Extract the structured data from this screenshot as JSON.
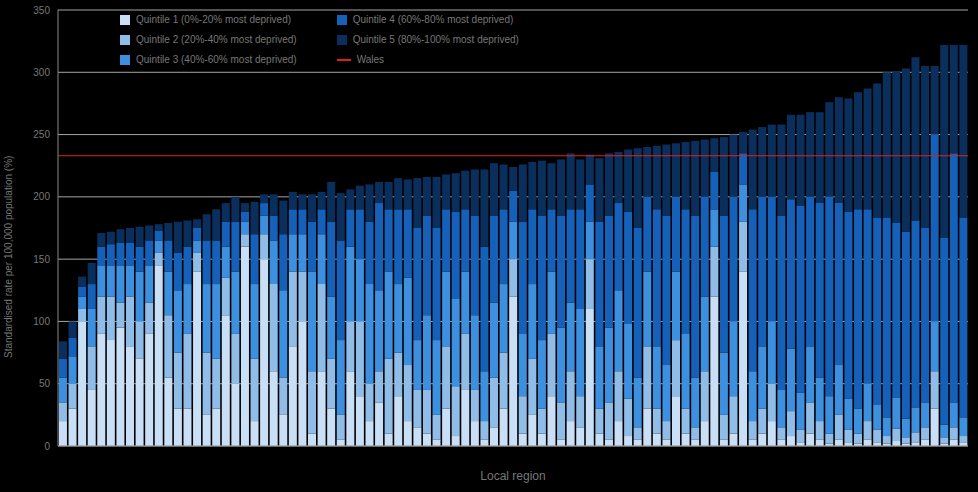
{
  "chart_data": {
    "type": "bar",
    "stacked": true,
    "grid": true,
    "legend": "top-left",
    "tick_labels": "y",
    "y_label": "Standardised rate per 100,000 population (%)",
    "x_label": "Local region",
    "categories": [
      null,
      null,
      null,
      null,
      null,
      null,
      null,
      null,
      null,
      null,
      null,
      null,
      null,
      null,
      null,
      null,
      null,
      null,
      null,
      null,
      null,
      null,
      null,
      null,
      null,
      null,
      null,
      null,
      null,
      null,
      null,
      null,
      null,
      null,
      null,
      null,
      null,
      null,
      null,
      null,
      null,
      null,
      null,
      null,
      null,
      null,
      null,
      null,
      null,
      null,
      null,
      null,
      null,
      null,
      null,
      null,
      null,
      null,
      null,
      null,
      null,
      null,
      null,
      null,
      null,
      null,
      null,
      null,
      null,
      null,
      null,
      null,
      null,
      null,
      null,
      null,
      null,
      null,
      null,
      null,
      null,
      null,
      null,
      null,
      null,
      null,
      null,
      null,
      null,
      null,
      null,
      null,
      null,
      null,
      null
    ],
    "ylim": [
      0,
      350
    ],
    "yticks": [
      0,
      50,
      100,
      150,
      200,
      250,
      300,
      350
    ],
    "series": [
      {
        "name": "Quintile 1 (0%-20% most deprived)",
        "color": "#c9dff5",
        "values": [
          20,
          30,
          100,
          45,
          90,
          85,
          95,
          80,
          70,
          90,
          145,
          55,
          30,
          30,
          140,
          25,
          30,
          105,
          50,
          160,
          20,
          150,
          60,
          25,
          80,
          100,
          10,
          60,
          30,
          5,
          60,
          40,
          20,
          35,
          10,
          40,
          20,
          15,
          10,
          5,
          30,
          8,
          45,
          20,
          5,
          15,
          30,
          120,
          10,
          25,
          10,
          40,
          5,
          20,
          15,
          110,
          10,
          5,
          20,
          8,
          5,
          30,
          10,
          5,
          40,
          10,
          5,
          20,
          120,
          5,
          10,
          140,
          5,
          10,
          20,
          5,
          8,
          3,
          10,
          5,
          2,
          5,
          3,
          2,
          5,
          3,
          2,
          4,
          2,
          3,
          5,
          30,
          2,
          5,
          3
        ]
      },
      {
        "name": "Quintile 2 (20%-40% most deprived)",
        "color": "#8fbde8",
        "values": [
          15,
          20,
          10,
          35,
          30,
          35,
          20,
          40,
          30,
          25,
          10,
          50,
          45,
          60,
          15,
          50,
          40,
          30,
          40,
          10,
          50,
          20,
          70,
          30,
          60,
          40,
          50,
          70,
          40,
          20,
          40,
          60,
          30,
          25,
          60,
          35,
          45,
          30,
          35,
          20,
          50,
          40,
          45,
          25,
          15,
          40,
          45,
          30,
          30,
          45,
          20,
          50,
          30,
          40,
          25,
          40,
          20,
          30,
          40,
          30,
          10,
          50,
          20,
          15,
          45,
          20,
          10,
          40,
          40,
          20,
          30,
          40,
          15,
          20,
          30,
          10,
          20,
          10,
          25,
          15,
          8,
          20,
          10,
          8,
          15,
          10,
          6,
          10,
          5,
          8,
          10,
          30,
          5,
          10,
          5
        ]
      },
      {
        "name": "Quintile 3 (40%-60% most deprived)",
        "color": "#3d8fe0",
        "values": [
          20,
          22,
          10,
          30,
          25,
          25,
          30,
          25,
          40,
          30,
          10,
          35,
          50,
          40,
          10,
          55,
          60,
          25,
          50,
          10,
          60,
          15,
          35,
          70,
          30,
          30,
          80,
          40,
          50,
          60,
          60,
          50,
          80,
          65,
          70,
          55,
          70,
          40,
          60,
          60,
          60,
          70,
          50,
          60,
          40,
          60,
          55,
          30,
          50,
          60,
          55,
          50,
          60,
          55,
          70,
          30,
          50,
          60,
          65,
          60,
          40,
          60,
          50,
          45,
          55,
          60,
          40,
          60,
          30,
          50,
          60,
          30,
          40,
          50,
          50,
          30,
          50,
          30,
          45,
          35,
          30,
          40,
          25,
          20,
          30,
          20,
          15,
          25,
          15,
          20,
          20,
          40,
          10,
          20,
          15
        ]
      },
      {
        "name": "Quintile 4 (60%-80% most deprived)",
        "color": "#1560b8",
        "values": [
          15,
          15,
          8,
          20,
          15,
          17,
          18,
          18,
          20,
          20,
          8,
          25,
          30,
          30,
          10,
          35,
          35,
          20,
          40,
          8,
          40,
          10,
          20,
          45,
          20,
          20,
          40,
          20,
          60,
          80,
          30,
          40,
          50,
          70,
          50,
          60,
          55,
          90,
          80,
          90,
          50,
          70,
          50,
          80,
          100,
          70,
          60,
          25,
          90,
          60,
          100,
          50,
          90,
          75,
          80,
          30,
          100,
          90,
          70,
          90,
          120,
          60,
          110,
          120,
          60,
          100,
          130,
          80,
          30,
          110,
          100,
          25,
          130,
          120,
          100,
          140,
          120,
          150,
          120,
          140,
          160,
          130,
          150,
          160,
          140,
          150,
          160,
          140,
          150,
          150,
          140,
          150,
          150,
          200,
          160
        ]
      },
      {
        "name": "Quintile 5 (80%-100% most deprived)",
        "color": "#0b2f5c",
        "values": [
          14,
          13,
          8,
          17,
          11,
          10,
          11,
          12,
          16,
          12,
          5,
          14,
          25,
          21,
          7,
          21,
          25,
          15,
          20,
          7,
          26,
          7,
          17,
          27,
          14,
          12,
          22,
          14,
          32,
          38,
          16,
          19,
          30,
          17,
          22,
          25,
          24,
          40,
          31,
          41,
          28,
          31,
          31,
          37,
          62,
          42,
          36,
          19,
          46,
          38,
          44,
          37,
          45,
          45,
          40,
          24,
          51,
          50,
          41,
          50,
          64,
          40,
          51,
          57,
          43,
          54,
          60,
          46,
          27,
          63,
          50,
          17,
          64,
          56,
          58,
          73,
          68,
          73,
          68,
          73,
          76,
          85,
          91,
          94,
          97,
          108,
          117,
          122,
          131,
          131,
          130,
          55,
          155,
          87,
          139
        ]
      },
      {
        "name": "Wales",
        "type": "line",
        "color": "#e02020",
        "value": 233
      }
    ]
  }
}
